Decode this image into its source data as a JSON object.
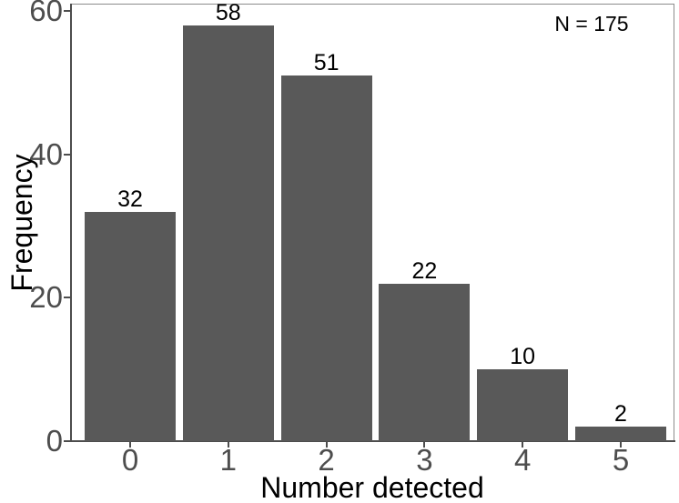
{
  "chart_data": {
    "type": "bar",
    "categories": [
      "0",
      "1",
      "2",
      "3",
      "4",
      "5"
    ],
    "values": [
      32,
      58,
      51,
      22,
      10,
      2
    ],
    "bar_labels": [
      "32",
      "58",
      "51",
      "22",
      "10",
      "2"
    ],
    "title": "",
    "xlabel": "Number detected",
    "ylabel": "Frequency",
    "ylim": [
      0,
      61
    ],
    "yticks": [
      0,
      20,
      40,
      60
    ],
    "ytick_labels": [
      "0",
      "20",
      "40",
      "60"
    ],
    "annotation": "N = 175",
    "legend": "none",
    "grid": false,
    "colors": {
      "bar": "#595959",
      "axis_text": "#4d4d4d",
      "axis_line": "#4d4d4d",
      "panel_border": "#8c8c8c",
      "label_text": "#000000",
      "background": "#ffffff"
    }
  }
}
